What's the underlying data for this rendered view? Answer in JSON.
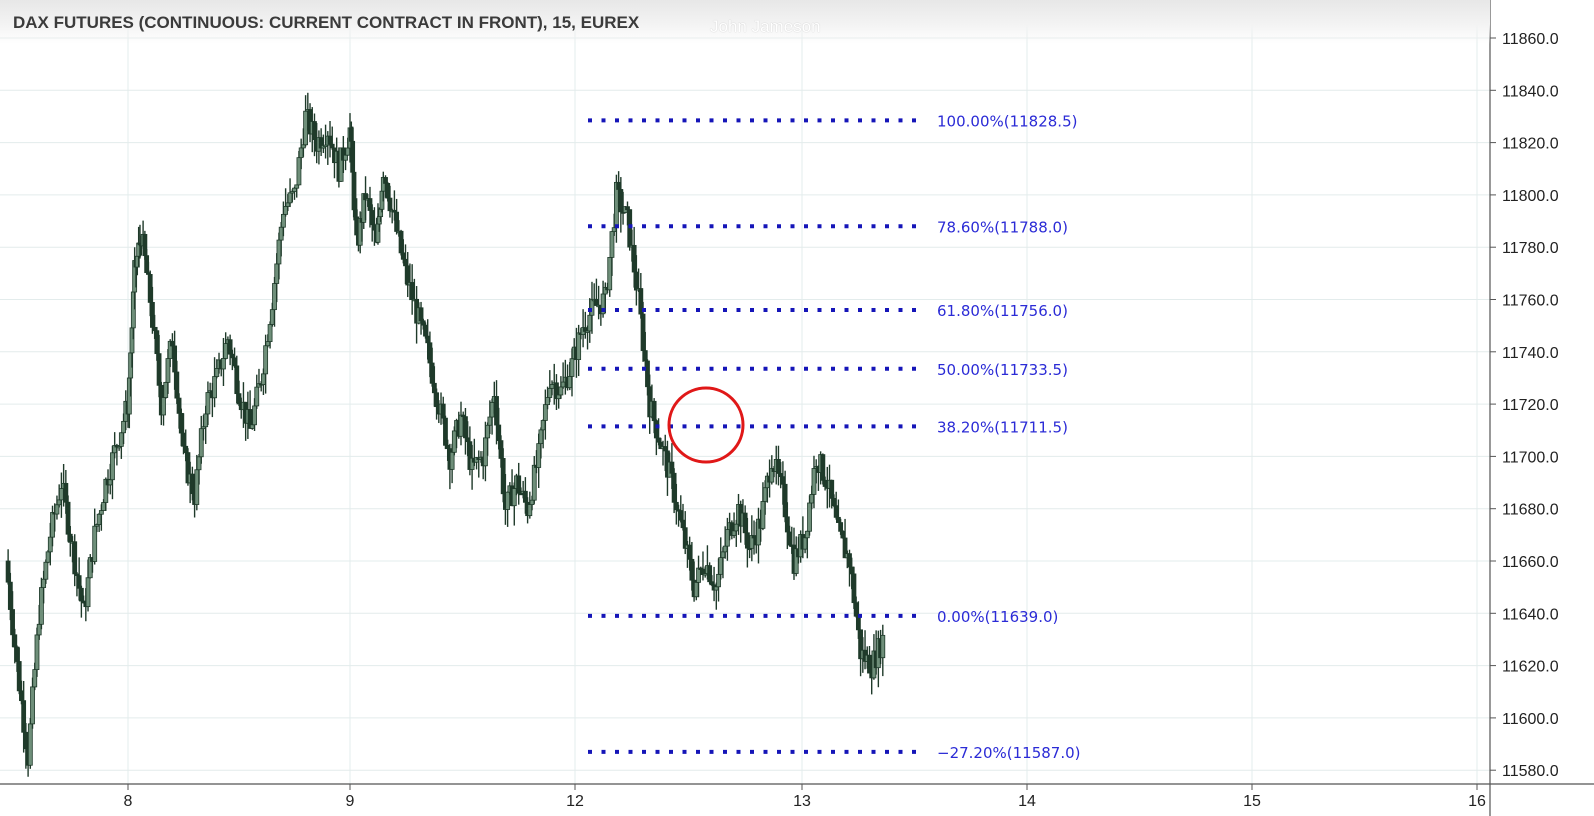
{
  "header": {
    "title": "DAX FUTURES (CONTINUOUS: CURRENT CONTRACT IN FRONT), 15, EUREX",
    "author": "John Jameson"
  },
  "colors": {
    "grid": "#e3ecec",
    "axis": "#555555",
    "fib": "#1515b8",
    "fib_label": "#2b2bd6",
    "candle": "#1f3a2a",
    "circle": "#e01818"
  },
  "chart_data": {
    "type": "candlestick",
    "title": "DAX FUTURES (CONTINUOUS: CURRENT CONTRACT IN FRONT), 15, EUREX",
    "x_ticks": [
      "8",
      "9",
      "12",
      "13",
      "14",
      "15",
      "16"
    ],
    "y_ticks": [
      11580,
      11600,
      11620,
      11640,
      11660,
      11680,
      11700,
      11720,
      11740,
      11760,
      11780,
      11800,
      11820,
      11840,
      11860
    ],
    "ylim": [
      11574,
      11866
    ],
    "grid": true,
    "price_path": [
      [
        7.45,
        11660
      ],
      [
        7.5,
        11620
      ],
      [
        7.55,
        11585
      ],
      [
        7.6,
        11640
      ],
      [
        7.65,
        11670
      ],
      [
        7.7,
        11690
      ],
      [
        7.75,
        11665
      ],
      [
        7.8,
        11640
      ],
      [
        7.85,
        11670
      ],
      [
        7.9,
        11690
      ],
      [
        7.95,
        11705
      ],
      [
        8.0,
        11720
      ],
      [
        8.03,
        11770
      ],
      [
        8.06,
        11785
      ],
      [
        8.1,
        11760
      ],
      [
        8.15,
        11720
      ],
      [
        8.2,
        11745
      ],
      [
        8.25,
        11700
      ],
      [
        8.3,
        11685
      ],
      [
        8.35,
        11720
      ],
      [
        8.4,
        11730
      ],
      [
        8.45,
        11745
      ],
      [
        8.5,
        11725
      ],
      [
        8.55,
        11710
      ],
      [
        8.6,
        11730
      ],
      [
        8.65,
        11760
      ],
      [
        8.7,
        11795
      ],
      [
        8.75,
        11800
      ],
      [
        8.8,
        11830
      ],
      [
        8.85,
        11820
      ],
      [
        8.9,
        11825
      ],
      [
        8.95,
        11810
      ],
      [
        9.0,
        11825
      ],
      [
        9.03,
        11780
      ],
      [
        9.07,
        11800
      ],
      [
        9.12,
        11780
      ],
      [
        9.15,
        11810
      ],
      [
        9.2,
        11790
      ],
      [
        9.25,
        11770
      ],
      [
        9.3,
        11755
      ],
      [
        9.35,
        11740
      ],
      [
        9.4,
        11720
      ],
      [
        9.45,
        11700
      ],
      [
        9.5,
        11715
      ],
      [
        9.55,
        11695
      ],
      [
        9.6,
        11700
      ],
      [
        9.65,
        11725
      ],
      [
        9.7,
        11680
      ],
      [
        9.75,
        11690
      ],
      [
        9.8,
        11680
      ],
      [
        9.85,
        11700
      ],
      [
        9.9,
        11730
      ],
      [
        9.95,
        11725
      ],
      [
        10.0,
        11735
      ],
      [
        10.05,
        11750
      ],
      [
        10.1,
        11757
      ],
      [
        10.15,
        11760
      ],
      [
        10.2,
        11800
      ],
      [
        10.25,
        11790
      ],
      [
        10.3,
        11760
      ],
      [
        10.35,
        11720
      ],
      [
        10.4,
        11705
      ],
      [
        10.45,
        11690
      ],
      [
        10.5,
        11670
      ],
      [
        10.55,
        11650
      ],
      [
        10.6,
        11660
      ],
      [
        10.65,
        11650
      ],
      [
        10.7,
        11670
      ],
      [
        10.75,
        11680
      ],
      [
        10.8,
        11665
      ],
      [
        10.85,
        11675
      ],
      [
        10.9,
        11700
      ],
      [
        10.95,
        11685
      ],
      [
        11.0,
        11660
      ],
      [
        11.05,
        11670
      ],
      [
        11.1,
        11700
      ],
      [
        11.15,
        11690
      ],
      [
        11.2,
        11670
      ],
      [
        11.25,
        11660
      ],
      [
        11.3,
        11625
      ],
      [
        11.35,
        11620
      ],
      [
        11.4,
        11630
      ]
    ],
    "fib_levels": [
      {
        "label": "100.00%(11828.5)",
        "price": 11828.5
      },
      {
        "label": "78.60%(11788.0)",
        "price": 11788.0
      },
      {
        "label": "61.80%(11756.0)",
        "price": 11756.0
      },
      {
        "label": "50.00%(11733.5)",
        "price": 11733.5
      },
      {
        "label": "38.20%(11711.5)",
        "price": 11711.5
      },
      {
        "label": "0.00%(11639.0)",
        "price": 11639.0
      },
      {
        "label": "−27.20%(11587.0)",
        "price": 11587.0
      }
    ],
    "annotation": {
      "type": "circle",
      "price": 11712
    }
  }
}
